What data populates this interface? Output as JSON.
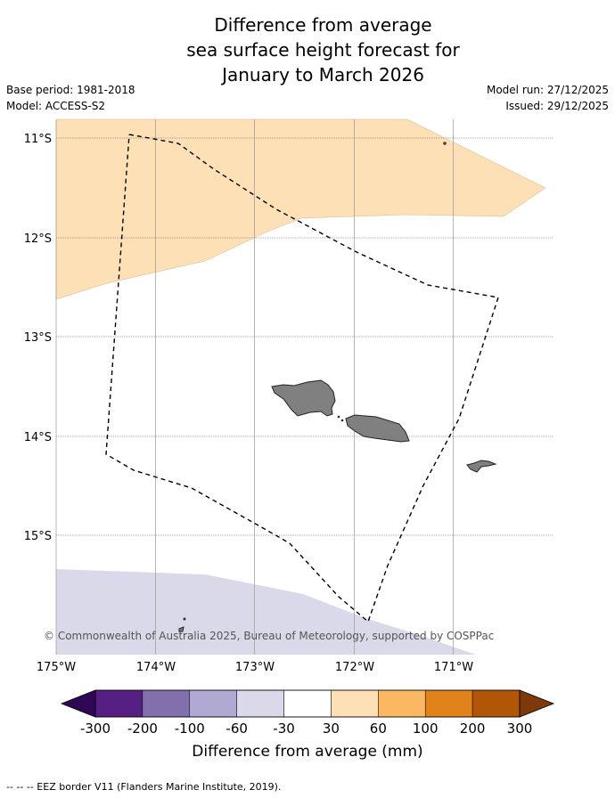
{
  "title": {
    "line1": "Difference from average",
    "line2": "sea surface height forecast for",
    "line3": "January to March 2026"
  },
  "meta": {
    "base_period": "Base period: 1981-2018",
    "model": "Model: ACCESS-S2",
    "model_run": "Model run: 27/12/2025",
    "issued": "Issued: 29/12/2025"
  },
  "map": {
    "latitude_labels": [
      "11°S",
      "12°S",
      "13°S",
      "14°S",
      "15°S"
    ],
    "longitude_labels": [
      "175°W",
      "174°W",
      "173°W",
      "172°W",
      "171°W"
    ],
    "copyright": "© Commonwealth of Australia 2025, Bureau of Meteorology, supported by COSPPac",
    "colors": {
      "positive_30_60": "#fde0b6",
      "negative_60_30": "#d9d9ea",
      "land": "#808080",
      "gridline": "#999999"
    }
  },
  "colorbar": {
    "label": "Difference from average (mm)",
    "ticks": [
      "-300",
      "-200",
      "-100",
      "-60",
      "-30",
      "30",
      "60",
      "100",
      "200",
      "300"
    ],
    "colors": [
      "#561f82",
      "#8270ad",
      "#b1a9d1",
      "#d9d9ea",
      "#ffffff",
      "#fde0b6",
      "#fbb862",
      "#e1821a",
      "#b05606"
    ],
    "extend_low": "#2e0854",
    "extend_high": "#7d3a08"
  },
  "footnote": "--  --  -- EEZ border V11 (Flanders Marine Institute, 2019)."
}
